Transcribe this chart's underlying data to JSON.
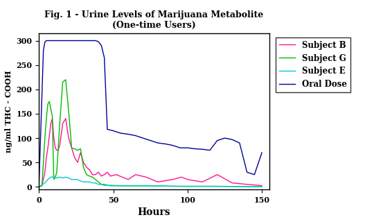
{
  "title_line1": "Fig. 1 - Urine Levels of Marijuana Metabolite",
  "title_line2": "(One-time Users)",
  "xlabel": "Hours",
  "ylabel": "ng/ml THC - COOH",
  "xlim": [
    0,
    155
  ],
  "ylim": [
    -5,
    315
  ],
  "xticks": [
    0,
    50,
    100,
    150
  ],
  "yticks": [
    0,
    50,
    100,
    150,
    200,
    250,
    300
  ],
  "background_color": "#ffffff",
  "series": [
    {
      "label": "Subject B",
      "color": "#ff1493",
      "x": [
        0,
        2,
        4,
        5,
        6,
        8,
        9,
        10,
        11,
        12,
        13,
        14,
        16,
        18,
        20,
        22,
        24,
        26,
        28,
        30,
        32,
        34,
        36,
        38,
        40,
        42,
        44,
        46,
        48,
        52,
        56,
        60,
        65,
        72,
        80,
        90,
        96,
        100,
        110,
        120,
        130,
        140,
        148,
        150
      ],
      "y": [
        0,
        2,
        30,
        60,
        80,
        130,
        140,
        100,
        80,
        75,
        75,
        85,
        130,
        140,
        100,
        80,
        60,
        50,
        70,
        50,
        40,
        35,
        25,
        25,
        30,
        22,
        25,
        30,
        22,
        25,
        20,
        15,
        25,
        20,
        10,
        15,
        20,
        15,
        10,
        25,
        8,
        5,
        3,
        2
      ]
    },
    {
      "label": "Subject G",
      "color": "#00bb00",
      "x": [
        0,
        2,
        4,
        5,
        6,
        7,
        8,
        9,
        10,
        11,
        12,
        14,
        16,
        18,
        20,
        22,
        24,
        26,
        28,
        30,
        32,
        34,
        36,
        38,
        40,
        42,
        44,
        46,
        48,
        56,
        65,
        72,
        96,
        120,
        150
      ],
      "y": [
        0,
        2,
        100,
        140,
        170,
        175,
        160,
        145,
        15,
        20,
        30,
        130,
        215,
        220,
        155,
        80,
        78,
        75,
        78,
        40,
        25,
        22,
        20,
        15,
        10,
        5,
        5,
        3,
        3,
        2,
        2,
        2,
        1,
        1,
        0
      ]
    },
    {
      "label": "Subject E",
      "color": "#00cccc",
      "x": [
        0,
        2,
        4,
        6,
        8,
        10,
        12,
        14,
        16,
        18,
        20,
        22,
        24,
        26,
        28,
        30,
        32,
        34,
        36,
        38,
        40,
        42,
        44,
        46,
        48,
        52,
        56,
        65,
        72,
        96,
        120,
        150
      ],
      "y": [
        0,
        4,
        8,
        15,
        20,
        20,
        18,
        20,
        18,
        20,
        18,
        15,
        15,
        15,
        12,
        10,
        10,
        10,
        8,
        8,
        5,
        5,
        3,
        3,
        2,
        2,
        2,
        2,
        2,
        1,
        1,
        0
      ]
    },
    {
      "label": "Oral Dose",
      "color": "#000099",
      "x": [
        0,
        3,
        4,
        5,
        6,
        38,
        40,
        42,
        44,
        46,
        50,
        55,
        60,
        65,
        70,
        75,
        80,
        85,
        90,
        95,
        100,
        105,
        110,
        115,
        120,
        125,
        130,
        135,
        140,
        145,
        150
      ],
      "y": [
        0,
        280,
        297,
        300,
        300,
        300,
        298,
        290,
        265,
        118,
        115,
        110,
        108,
        105,
        100,
        95,
        90,
        88,
        85,
        80,
        80,
        78,
        77,
        75,
        95,
        100,
        97,
        90,
        30,
        25,
        70
      ]
    }
  ]
}
